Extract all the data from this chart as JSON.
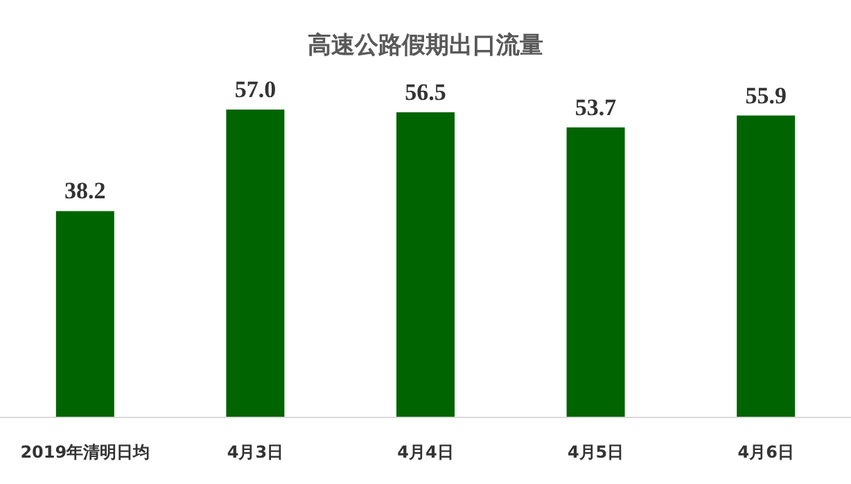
{
  "chart_data": {
    "type": "bar",
    "title": "高速公路假期出口流量",
    "categories": [
      "2019年清明日均",
      "4月3日",
      "4月4日",
      "4月5日",
      "4月6日"
    ],
    "values": [
      38.2,
      57.0,
      56.5,
      53.7,
      55.9
    ],
    "value_labels": [
      "38.2",
      "57.0",
      "56.5",
      "53.7",
      "55.9"
    ],
    "color": "#006400",
    "data_labels": true
  }
}
